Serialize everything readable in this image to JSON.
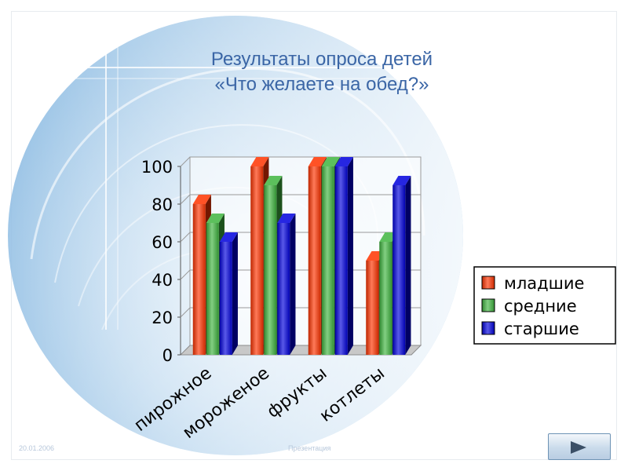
{
  "slide": {
    "title_line1": "Результаты опроса детей",
    "title_line2": "«Что желаете на обед?»",
    "footer_date": "20.01.2006",
    "footer_center": "Презентация"
  },
  "colors": {
    "младшие": "#ff3300",
    "средние": "#3fb53f",
    "старшие": "#0000dd"
  },
  "chart_data": {
    "type": "bar",
    "title": "",
    "xlabel": "",
    "ylabel": "",
    "categories": [
      "пирожное",
      "мороженое",
      "фрукты",
      "котлеты"
    ],
    "series": [
      {
        "name": "младшие",
        "values": [
          80,
          100,
          100,
          50
        ]
      },
      {
        "name": "средние",
        "values": [
          70,
          90,
          100,
          60
        ]
      },
      {
        "name": "старшие",
        "values": [
          60,
          70,
          100,
          90
        ]
      }
    ],
    "ylim": [
      0,
      100
    ],
    "yticks": [
      0,
      20,
      40,
      60,
      80,
      100
    ],
    "grid": true,
    "legend": "right",
    "style": "3d"
  }
}
